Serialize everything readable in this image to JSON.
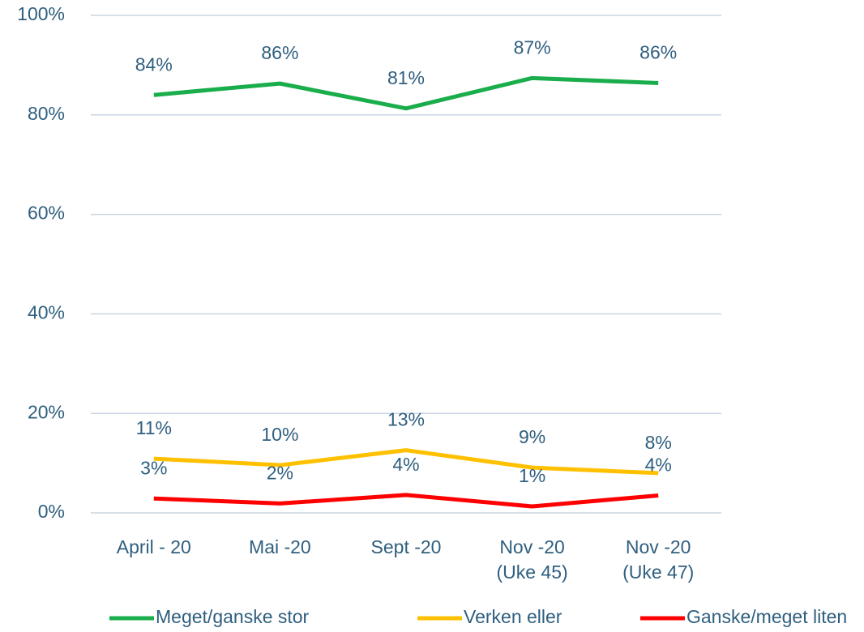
{
  "chart_data": {
    "type": "line",
    "categories": [
      "April - 20",
      "Mai -20",
      "Sept -20",
      "Nov -20\n(Uke 45)",
      "Nov -20\n(Uke 47)"
    ],
    "series": [
      {
        "name": "Meget/ganske stor",
        "color": "#1aad4b",
        "values": [
          84.0,
          86.3,
          81.3,
          87.4,
          86.4
        ],
        "value_labels": [
          "84%",
          "86%",
          "81%",
          "87%",
          "86%"
        ]
      },
      {
        "name": "Verken eller",
        "color": "#ffc000",
        "values": [
          10.9,
          9.6,
          12.6,
          9.1,
          8.0
        ],
        "value_labels": [
          "11%",
          "10%",
          "13%",
          "9%",
          "8%"
        ]
      },
      {
        "name": "Ganske/meget liten",
        "color": "#ff0000",
        "values": [
          2.9,
          1.9,
          3.6,
          1.3,
          3.5
        ],
        "value_labels": [
          "3%",
          "2%",
          "4%",
          "1%",
          "4%"
        ]
      }
    ],
    "ylim": [
      0,
      100
    ],
    "yticks": [
      {
        "value": 0,
        "label": "0%"
      },
      {
        "value": 20,
        "label": "20%"
      },
      {
        "value": 40,
        "label": "40%"
      },
      {
        "value": 60,
        "label": "60%"
      },
      {
        "value": 80,
        "label": "80%"
      },
      {
        "value": 100,
        "label": "100%"
      }
    ],
    "grid": true,
    "legend": "bottom"
  }
}
